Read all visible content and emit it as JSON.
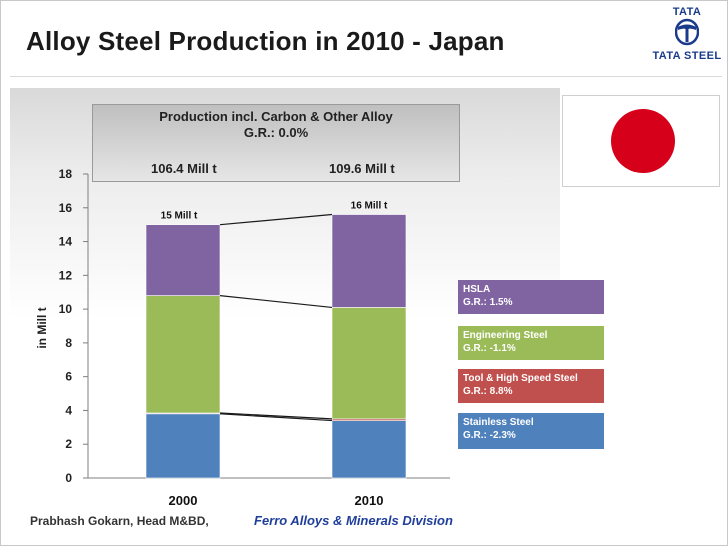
{
  "slide": {
    "title": "Alloy Steel Production in 2010 - Japan",
    "logo_top": "TATA",
    "logo_bottom": "TATA STEEL"
  },
  "banner": {
    "line1": "Production incl. Carbon & Other Alloy",
    "line2": "G.R.: 0.0%",
    "value_2000": "106.4 Mill t",
    "value_2010": "109.6 Mill t"
  },
  "footer": {
    "author": "Prabhash Gokarn, Head M&BD,",
    "division": "Ferro Alloys & Minerals Division"
  },
  "legend": [
    {
      "name": "HSLA",
      "growth": "G.R.: 1.5%",
      "color": "#8064a2"
    },
    {
      "name": "Engineering Steel",
      "growth": "G.R.: -1.1%",
      "color": "#9bbb59"
    },
    {
      "name": "Tool & High Speed Steel",
      "growth": "G.R.: 8.8%",
      "color": "#c0504d"
    },
    {
      "name": "Stainless Steel",
      "growth": "G.R.: -2.3%",
      "color": "#4f81bd"
    }
  ],
  "chart_data": {
    "type": "bar",
    "stacked": true,
    "categories": [
      "2000",
      "2010"
    ],
    "series": [
      {
        "name": "Stainless Steel",
        "values": [
          3.8,
          3.4
        ],
        "color": "#4f81bd"
      },
      {
        "name": "Tool & High Speed Steel",
        "values": [
          0.05,
          0.1
        ],
        "color": "#c0504d"
      },
      {
        "name": "Engineering Steel",
        "values": [
          6.95,
          6.6
        ],
        "color": "#9bbb59"
      },
      {
        "name": "HSLA",
        "values": [
          4.2,
          5.5
        ],
        "color": "#8064a2"
      }
    ],
    "totals": [
      "15 Mill t",
      "16 Mill t"
    ],
    "ylabel": "in Mill t",
    "ylim": [
      0,
      18
    ],
    "yticks": [
      0,
      2,
      4,
      6,
      8,
      10,
      12,
      14,
      16,
      18
    ]
  }
}
